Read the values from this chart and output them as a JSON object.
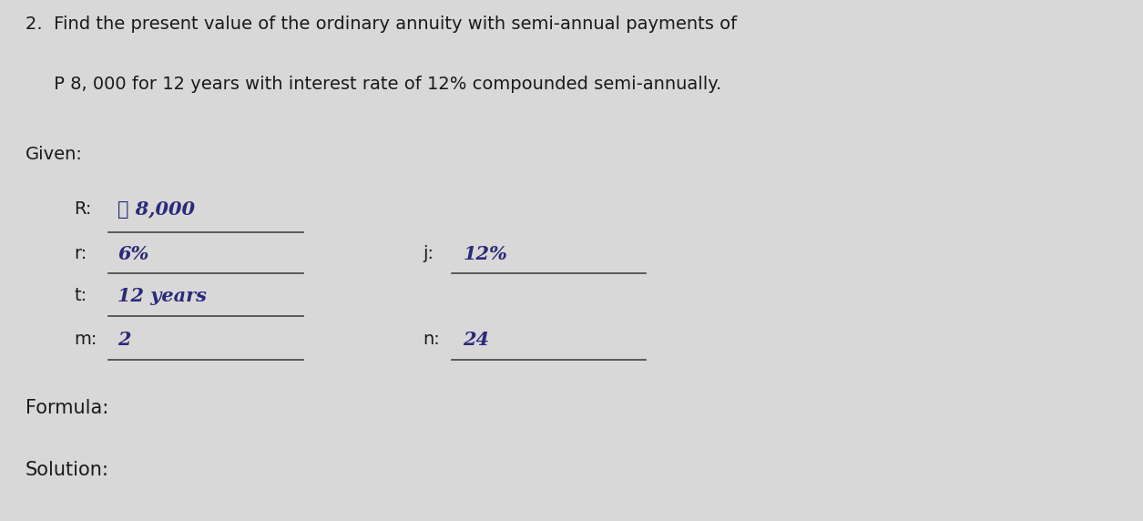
{
  "bg_color": "#d8d8d8",
  "title_line1": "2.  Find the present value of the ordinary annuity with semi-annual payments of",
  "title_line2": "     P 8, 000 for 12 years with interest rate of 12% compounded semi-annually.",
  "given_label": "Given:",
  "R_label": "R:",
  "R_value": "℘ 8,000",
  "r_label": "r:",
  "r_value": "6%",
  "t_label": "t:",
  "t_value": "12 years",
  "m_label": "m:",
  "m_value": "2",
  "j_label": "j:",
  "j_value": "12%",
  "n_label": "n:",
  "n_value": "24",
  "formula_label": "Formula:",
  "solution_label": "Solution:",
  "font_size_title": 14,
  "font_size_body": 14,
  "handwriting_color": "#2a2a7a",
  "text_color": "#1a1a1a",
  "line_color": "#444444"
}
